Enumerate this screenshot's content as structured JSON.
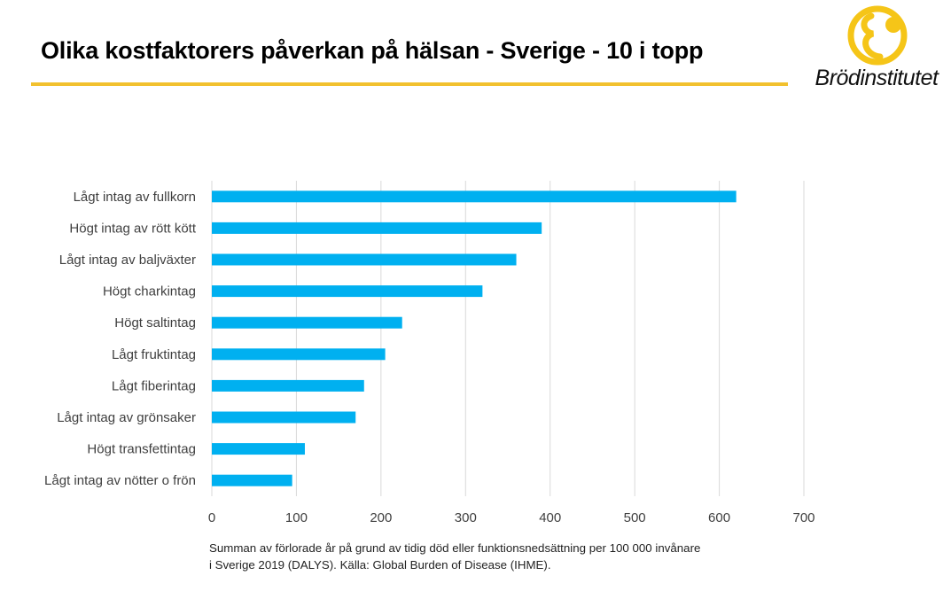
{
  "header": {
    "title": "Olika kostfaktorers påverkan på hälsan - Sverige - 10 i topp",
    "rule_color": "#f2c12e"
  },
  "logo": {
    "text": "Brödinstitutet",
    "color": "#f5c518"
  },
  "chart_data": {
    "type": "bar",
    "orientation": "horizontal",
    "categories": [
      "Lågt intag av fullkorn",
      "Högt intag av rött kött",
      "Lågt intag av baljväxter",
      "Högt charkintag",
      "Högt saltintag",
      "Lågt fruktintag",
      "Lågt fiberintag",
      "Lågt intag av grönsaker",
      "Högt transfettintag",
      "Lågt intag av nötter o frön"
    ],
    "values": [
      620,
      390,
      360,
      320,
      225,
      205,
      180,
      170,
      110,
      95
    ],
    "xlim": [
      0,
      700
    ],
    "xticks": [
      "0",
      "100",
      "200",
      "300",
      "400",
      "500",
      "600",
      "700"
    ],
    "grid": true,
    "bar_color": "#00b0f0",
    "title": "",
    "xlabel": "",
    "ylabel": ""
  },
  "footnote": {
    "line1": "Summan av förlorade år på grund av tidig död eller funktionsnedsättning per 100 000 invånare",
    "line2": "i Sverige 2019 (DALYS). Källa: Global Burden of Disease (IHME)."
  }
}
